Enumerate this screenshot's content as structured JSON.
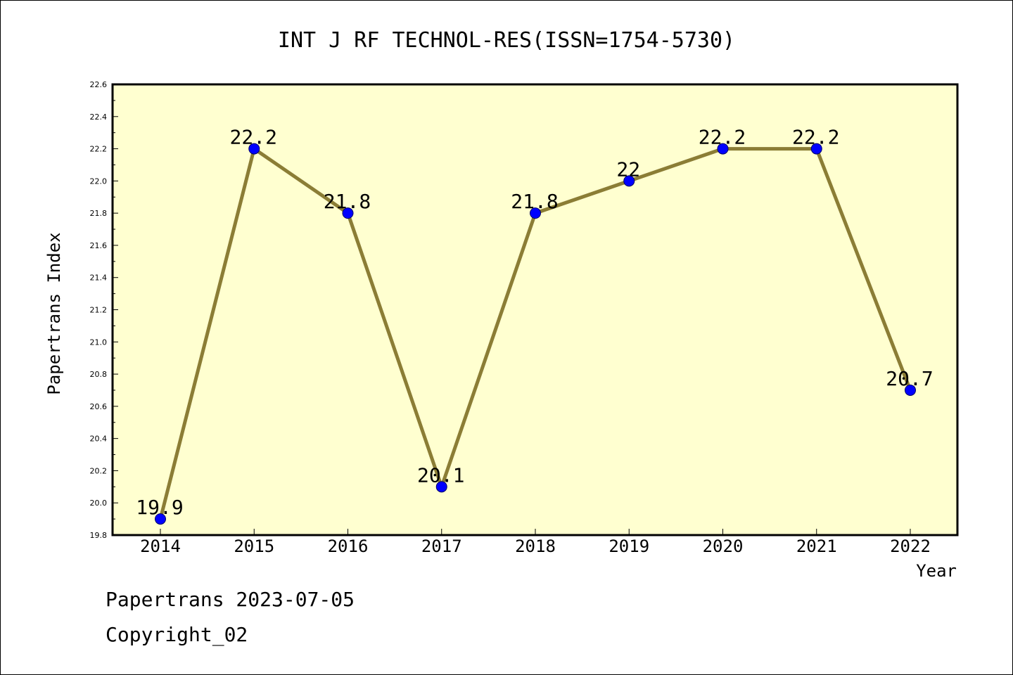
{
  "chart_data": {
    "type": "line",
    "title": "INT J RF TECHNOL-RES(ISSN=1754-5730)",
    "xlabel": "Year",
    "ylabel": "Papertrans Index",
    "categories": [
      "2014",
      "2015",
      "2016",
      "2017",
      "2018",
      "2019",
      "2020",
      "2021",
      "2022"
    ],
    "series": [
      {
        "values": [
          19.9,
          22.2,
          21.8,
          20.1,
          21.8,
          22.0,
          22.2,
          22.2,
          20.7
        ],
        "labels": [
          "19.9",
          "22.2",
          "21.8",
          "20.1",
          "21.8",
          "22",
          "22.2",
          "22.2",
          "20.7"
        ]
      }
    ],
    "ylim": [
      19.8,
      22.6
    ],
    "yticks": [
      "19.8",
      "20.0",
      "20.2",
      "20.4",
      "20.6",
      "20.8",
      "21.0",
      "21.2",
      "21.4",
      "21.6",
      "21.8",
      "22.0",
      "22.2",
      "22.4",
      "22.6"
    ],
    "grid": false,
    "colors": {
      "plot_background": "#ffffd0",
      "line": "#8b7d35",
      "marker": "#0000ff",
      "marker_edge": "#00006a"
    }
  },
  "footer": {
    "line1": "Papertrans 2023-07-05",
    "line2": "Copyright_02"
  }
}
